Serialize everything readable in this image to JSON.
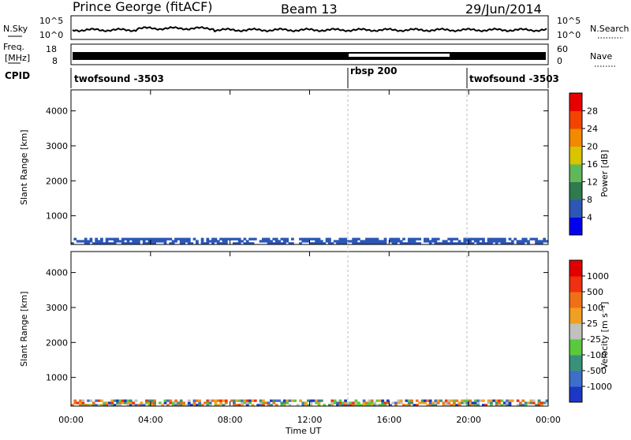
{
  "header": {
    "station": "Prince George (fitACF)",
    "beam": "Beam 13",
    "date": "29/Jun/2014"
  },
  "panels": {
    "noise": {
      "left_label": "N.Sky",
      "right_label": "N.Search",
      "left_ticks": [
        "10^5",
        "10^0"
      ],
      "right_ticks": [
        "10^5",
        "10^0"
      ]
    },
    "freq": {
      "left_label_1": "Freq.",
      "left_label_2": "[MHz]",
      "right_label": "Nave",
      "left_ticks": [
        "18",
        "8"
      ],
      "right_ticks": [
        "60",
        "0"
      ]
    },
    "cpid": {
      "label": "CPID",
      "segments": [
        {
          "name": "twofsound -3503",
          "start_h": 0.0
        },
        {
          "name": "rbsp 200",
          "start_h": 14.0
        },
        {
          "name": "twofsound -3503",
          "start_h": 20.0
        }
      ]
    }
  },
  "chart_data": [
    {
      "type": "heatmap",
      "quantity": "power",
      "ylabel": "Slant Range [km]",
      "xlabel": "",
      "y_ticks": [
        1000,
        2000,
        3000,
        4000
      ],
      "ylim": [
        180,
        4600
      ],
      "xlim_hours": [
        0,
        24
      ],
      "colorbar": {
        "label": "Power [dB]",
        "ticks": [
          "4",
          "8",
          "12",
          "16",
          "20",
          "24",
          "28"
        ],
        "colors": [
          "#0000ee",
          "#2c57b7",
          "#2f7a4e",
          "#5fb85a",
          "#d9c400",
          "#f28a00",
          "#f24400",
          "#e60000"
        ]
      }
    },
    {
      "type": "heatmap",
      "quantity": "velocity",
      "ylabel": "Slant Range [km]",
      "xlabel": "Time UT",
      "y_ticks": [
        1000,
        2000,
        3000,
        4000
      ],
      "ylim": [
        180,
        4600
      ],
      "xlim_hours": [
        0,
        24
      ],
      "x_tick_labels": [
        "00:00",
        "04:00",
        "08:00",
        "12:00",
        "16:00",
        "20:00",
        "00:00"
      ],
      "colorbar": {
        "label": "Velocity [m s⁻¹]",
        "ticks": [
          "1000",
          "500",
          "100",
          "25",
          "-25",
          "-100",
          "-500",
          "-1000"
        ],
        "colors": [
          "#1c37c8",
          "#3d6ec9",
          "#39917a",
          "#5ac93e",
          "#c0c0bc",
          "#f0a020",
          "#f07018",
          "#f03010",
          "#e00000"
        ]
      }
    }
  ]
}
